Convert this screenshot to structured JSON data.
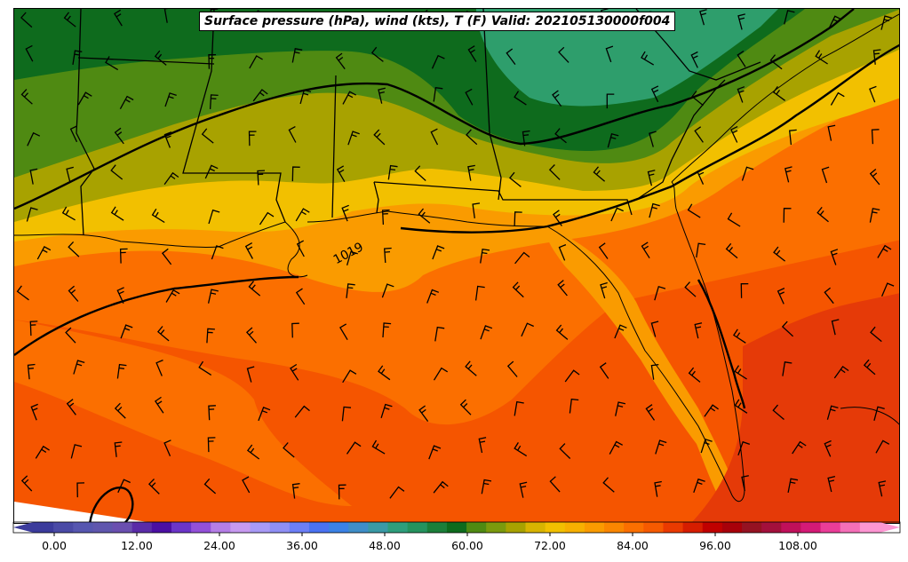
{
  "title": "Surface pressure (hPa), wind (kts), T (F) Valid: 202105130000f004",
  "contour_label": "1019",
  "colorbar": {
    "tick_labels": [
      "0.00",
      "12.00",
      "24.00",
      "36.00",
      "48.00",
      "60.00",
      "72.00",
      "84.00",
      "96.00",
      "108.00"
    ],
    "colors": [
      "#3b3b9c",
      "#4a4aa6",
      "#5656b0",
      "#5f56ae",
      "#6a4fb0",
      "#5a2ca8",
      "#4b0fa3",
      "#6b35c8",
      "#9350d8",
      "#b57ee6",
      "#c79af0",
      "#a89af6",
      "#8f8ff5",
      "#6c7ff7",
      "#4a72f2",
      "#3b82e6",
      "#3f8ec8",
      "#3a9aa6",
      "#2e9e7c",
      "#25935e",
      "#1b7f3a",
      "#0e6b1d",
      "#4f8a12",
      "#7b9a0d",
      "#a8a200",
      "#d8b400",
      "#f2c000",
      "#f7b000",
      "#fa9b00",
      "#fa8600",
      "#fb6f00",
      "#f65a00",
      "#ea3a00",
      "#d61d00",
      "#c00000",
      "#a8000a",
      "#951222",
      "#a3103c",
      "#c0105a",
      "#d41a76",
      "#ea3d98",
      "#f56fb8",
      "#fd96d2"
    ]
  },
  "palette": {
    "ocean_warm": "#f55500",
    "ocean_mid": "#fb6f00",
    "coast_orange": "#fa9b00",
    "yellow": "#f2c000",
    "olive": "#a8a200",
    "green_light": "#4f8a12",
    "green_dark": "#0e6b1d",
    "green_sea": "#2e9e6c",
    "ocean_hot": "#e53a08"
  }
}
